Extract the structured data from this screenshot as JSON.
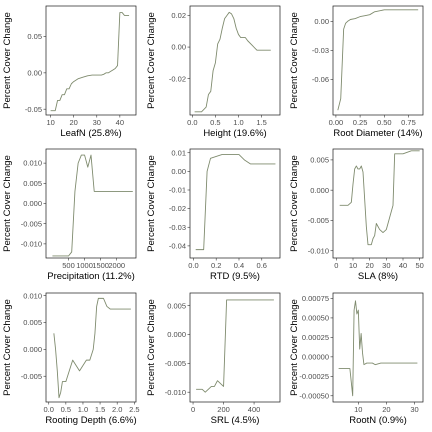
{
  "style": {
    "line_color": "#7f8b6e",
    "frame_color": "#1a1a1a",
    "text_color": "#000000",
    "tick_color": "#4d4d4d"
  },
  "chart_data": [
    {
      "type": "line",
      "ylabel": "Percent Cover Change",
      "xlabel": "LeafN  (25.8%)",
      "xlim": [
        8,
        47
      ],
      "ylim": [
        -0.058,
        0.092
      ],
      "xticks": [
        10,
        20,
        30,
        40
      ],
      "xtick_labels": [
        "10",
        "20",
        "30",
        "40"
      ],
      "yticks": [
        -0.05,
        0.0,
        0.05
      ],
      "ytick_labels": [
        "-0.05",
        "0.00",
        "0.05"
      ],
      "x": [
        10,
        12,
        13,
        14,
        15,
        16,
        17,
        18,
        19,
        20,
        21,
        22,
        24,
        26,
        28,
        30,
        32,
        33,
        34,
        35,
        36,
        37,
        38,
        39,
        40,
        41,
        42,
        44
      ],
      "y": [
        -0.052,
        -0.052,
        -0.038,
        -0.038,
        -0.03,
        -0.03,
        -0.022,
        -0.022,
        -0.015,
        -0.012,
        -0.01,
        -0.008,
        -0.006,
        -0.004,
        -0.003,
        -0.003,
        -0.003,
        -0.002,
        0.0,
        0.0,
        0.002,
        0.004,
        0.006,
        0.01,
        0.083,
        0.083,
        0.079,
        0.079
      ]
    },
    {
      "type": "line",
      "ylabel": "Percent Cover Change",
      "xlabel": "Height  (19.6%)",
      "xlim": [
        -0.05,
        1.9
      ],
      "ylim": [
        -0.043,
        0.026
      ],
      "xticks": [
        0.0,
        0.5,
        1.0,
        1.5
      ],
      "xtick_labels": [
        "0.0",
        "0.5",
        "1.0",
        "1.5"
      ],
      "yticks": [
        -0.02,
        0.0,
        0.02
      ],
      "ytick_labels": [
        "-0.02",
        "0.00",
        "0.02"
      ],
      "x": [
        0.05,
        0.2,
        0.3,
        0.35,
        0.4,
        0.45,
        0.5,
        0.55,
        0.6,
        0.65,
        0.7,
        0.75,
        0.8,
        0.85,
        0.9,
        0.95,
        1.0,
        1.05,
        1.1,
        1.15,
        1.2,
        1.3,
        1.4,
        1.5,
        1.7
      ],
      "y": [
        -0.041,
        -0.041,
        -0.038,
        -0.03,
        -0.028,
        -0.015,
        -0.01,
        0.002,
        0.005,
        0.012,
        0.018,
        0.02,
        0.022,
        0.021,
        0.018,
        0.012,
        0.008,
        0.006,
        0.006,
        0.006,
        0.004,
        0.001,
        -0.002,
        -0.002,
        -0.002
      ]
    },
    {
      "type": "line",
      "ylabel": "Percent Cover Change",
      "xlabel": "Root Diameter  (14%)",
      "xlim": [
        -0.03,
        0.9
      ],
      "ylim": [
        -0.097,
        0.016
      ],
      "xticks": [
        0.0,
        0.25,
        0.5,
        0.75
      ],
      "xtick_labels": [
        "0.00",
        "0.25",
        "0.50",
        "0.75"
      ],
      "yticks": [
        -0.06,
        -0.03,
        0.0
      ],
      "ytick_labels": [
        "-0.06",
        "-0.03",
        "0.00"
      ],
      "x": [
        0.02,
        0.05,
        0.08,
        0.1,
        0.12,
        0.15,
        0.2,
        0.25,
        0.3,
        0.35,
        0.4,
        0.5,
        0.85
      ],
      "y": [
        -0.092,
        -0.08,
        -0.008,
        -0.002,
        0.0,
        0.002,
        0.003,
        0.005,
        0.006,
        0.007,
        0.01,
        0.012,
        0.012
      ]
    },
    {
      "type": "line",
      "ylabel": "Percent Cover Change",
      "xlabel": "Precipitation  (11.2%)",
      "xlim": [
        -200,
        2600
      ],
      "ylim": [
        -0.0135,
        0.0135
      ],
      "xticks": [
        500,
        1000,
        1500,
        2000
      ],
      "xtick_labels": [
        "500",
        "1000",
        "1500",
        "2000"
      ],
      "yticks": [
        -0.01,
        -0.005,
        0.0,
        0.005,
        0.01
      ],
      "ytick_labels": [
        "-0.010",
        "-0.005",
        "0.000",
        "0.005",
        "0.010"
      ],
      "x": [
        0,
        500,
        600,
        700,
        800,
        900,
        1000,
        1100,
        1200,
        1300,
        1400,
        2500
      ],
      "y": [
        -0.013,
        -0.013,
        -0.012,
        0.003,
        0.01,
        0.012,
        0.012,
        0.009,
        0.012,
        0.003,
        0.003,
        0.003
      ]
    },
    {
      "type": "line",
      "ylabel": "Percent Cover Change",
      "xlabel": "RTD  (9.5%)",
      "xlim": [
        -0.03,
        0.76
      ],
      "ylim": [
        -0.0465,
        0.012
      ],
      "xticks": [
        0.0,
        0.2,
        0.4,
        0.6
      ],
      "xtick_labels": [
        "0.0",
        "0.2",
        "0.4",
        "0.6"
      ],
      "yticks": [
        -0.04,
        -0.03,
        -0.02,
        -0.01,
        0.0,
        0.01
      ],
      "ytick_labels": [
        "-0.04",
        "-0.03",
        "-0.02",
        "-0.01",
        "0.00",
        "0.01"
      ],
      "x": [
        0.02,
        0.09,
        0.12,
        0.15,
        0.2,
        0.25,
        0.4,
        0.45,
        0.5,
        0.72
      ],
      "y": [
        -0.042,
        -0.042,
        0.0,
        0.007,
        0.008,
        0.009,
        0.009,
        0.006,
        0.004,
        0.004
      ]
    },
    {
      "type": "line",
      "ylabel": "Percent Cover Change",
      "xlabel": "SLA  (8%)",
      "xlim": [
        -2,
        52
      ],
      "ylim": [
        -0.0112,
        0.0068
      ],
      "xticks": [
        0,
        10,
        20,
        30,
        40,
        50
      ],
      "xtick_labels": [
        "0",
        "10",
        "20",
        "30",
        "40",
        "50"
      ],
      "yticks": [
        -0.01,
        -0.005,
        0.0,
        0.005
      ],
      "ytick_labels": [
        "-0.010",
        "-0.005",
        "0.000",
        "0.005"
      ],
      "x": [
        2,
        5,
        7,
        9,
        10,
        11,
        12,
        13,
        14,
        15,
        16,
        18,
        19,
        20,
        21,
        22,
        23,
        24,
        25,
        26,
        28,
        30,
        32,
        34,
        35,
        40,
        45,
        48,
        50
      ],
      "y": [
        -0.0025,
        -0.0025,
        -0.0025,
        -0.002,
        0.001,
        0.0035,
        0.004,
        0.0035,
        0.0035,
        0.004,
        0.003,
        -0.006,
        -0.009,
        -0.009,
        -0.009,
        -0.008,
        -0.0075,
        -0.0055,
        -0.006,
        -0.0065,
        -0.007,
        -0.0065,
        -0.0045,
        -0.0025,
        0.006,
        0.006,
        0.0065,
        0.0065,
        0.0065
      ]
    },
    {
      "type": "line",
      "ylabel": "Percent Cover Change",
      "xlabel": "Rooting Depth  (6.6%)",
      "xlim": [
        -0.08,
        2.55
      ],
      "ylim": [
        -0.0098,
        0.0105
      ],
      "xticks": [
        0.0,
        0.5,
        1.0,
        1.5,
        2.0,
        2.5
      ],
      "xtick_labels": [
        "0.0",
        "0.5",
        "1.0",
        "1.5",
        "2.0",
        "2.5"
      ],
      "yticks": [
        -0.005,
        0.0,
        0.005,
        0.01
      ],
      "ytick_labels": [
        "-0.005",
        "0.000",
        "0.005",
        "0.010"
      ],
      "x": [
        0.15,
        0.2,
        0.25,
        0.3,
        0.35,
        0.4,
        0.5,
        0.6,
        0.7,
        0.8,
        0.9,
        1.0,
        1.1,
        1.2,
        1.3,
        1.35,
        1.4,
        1.45,
        1.5,
        1.6,
        1.7,
        1.8,
        2.0,
        2.4
      ],
      "y": [
        0.003,
        0.0,
        -0.004,
        -0.009,
        -0.008,
        -0.006,
        -0.006,
        -0.004,
        -0.002,
        -0.003,
        -0.004,
        -0.003,
        -0.002,
        -0.002,
        0.0,
        0.003,
        0.008,
        0.0095,
        0.0095,
        0.0095,
        0.008,
        0.0075,
        0.0075,
        0.0075
      ]
    },
    {
      "type": "line",
      "ylabel": "Percent Cover Change",
      "xlabel": "SRL  (4.5%)",
      "xlim": [
        -20,
        570
      ],
      "ylim": [
        -0.0117,
        0.0072
      ],
      "xticks": [
        0,
        200,
        400
      ],
      "xtick_labels": [
        "0",
        "200",
        "400"
      ],
      "yticks": [
        -0.01,
        -0.005,
        0.0,
        0.005
      ],
      "ytick_labels": [
        "-0.010",
        "-0.005",
        "0.000",
        "0.005"
      ],
      "x": [
        20,
        60,
        80,
        100,
        120,
        140,
        160,
        180,
        200,
        220,
        530
      ],
      "y": [
        -0.0095,
        -0.0095,
        -0.01,
        -0.0095,
        -0.009,
        -0.009,
        -0.008,
        -0.0085,
        -0.009,
        0.006,
        0.006
      ]
    },
    {
      "type": "line",
      "ylabel": "Percent Cover Change",
      "xlabel": "RootN  (0.9%)",
      "xlim": [
        1,
        33
      ],
      "ylim": [
        -0.00058,
        0.00082
      ],
      "xticks": [
        10,
        20,
        30
      ],
      "xtick_labels": [
        "10",
        "20",
        "30"
      ],
      "yticks": [
        -0.0005,
        -0.00025,
        0.0,
        0.00025,
        0.0005,
        0.00075
      ],
      "ytick_labels": [
        "-0.00050",
        "-0.00025",
        "0.00000",
        "0.00025",
        "0.00050",
        "0.00075"
      ],
      "x": [
        3,
        7,
        8,
        8.5,
        9,
        9.5,
        10,
        10.5,
        11,
        11.5,
        12,
        13,
        14,
        15,
        16,
        18,
        20,
        24,
        31
      ],
      "y": [
        -0.00015,
        -0.00015,
        -0.0005,
        0.0006,
        0.00072,
        0.00055,
        0.0006,
        0.0001,
        0.0003,
        5e-05,
        -0.0001,
        -8e-05,
        -8e-05,
        -8e-05,
        -0.0001,
        -8e-05,
        -8e-05,
        -8e-05,
        -8e-05
      ]
    }
  ]
}
